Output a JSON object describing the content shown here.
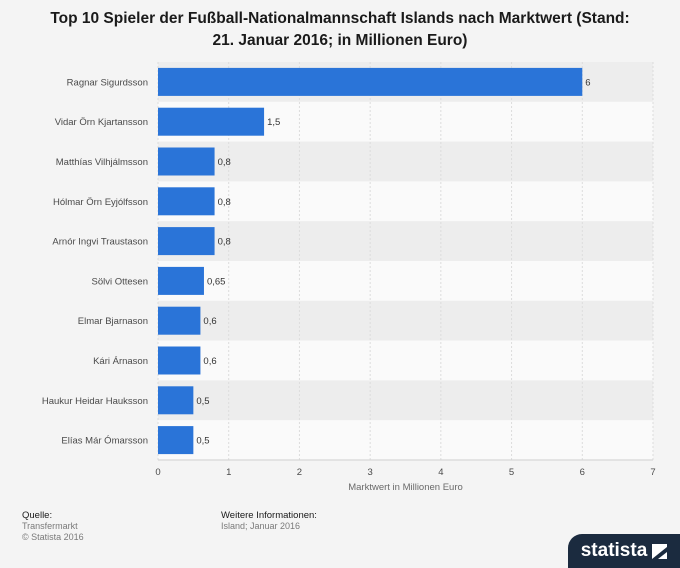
{
  "title_line1": "Top 10 Spieler der Fußball-Nationalmannschaft Islands nach Marktwert (Stand:",
  "title_line2": "21. Januar 2016; in Millionen Euro)",
  "chart_data": {
    "type": "bar",
    "orientation": "horizontal",
    "categories": [
      "Ragnar Sigurdsson",
      "Vidar Örn Kjartansson",
      "Matthías Vilhjálmsson",
      "Hólmar Örn Eyjólfsson",
      "Arnór Ingvi Traustason",
      "Sölvi Ottesen",
      "Elmar Bjarnason",
      "Kári Árnason",
      "Haukur Heidar Hauksson",
      "Elías Már Ómarsson"
    ],
    "values": [
      6,
      1.5,
      0.8,
      0.8,
      0.8,
      0.65,
      0.6,
      0.6,
      0.5,
      0.5
    ],
    "value_labels": [
      "6",
      "1,5",
      "0,8",
      "0,8",
      "0,8",
      "0,65",
      "0,6",
      "0,6",
      "0,5",
      "0,5"
    ],
    "xlabel": "Marktwert in Millionen Euro",
    "xlim": [
      0,
      7
    ],
    "xticks": [
      "0",
      "1",
      "2",
      "3",
      "4",
      "5",
      "6",
      "7"
    ],
    "bar_color": "#2a74d8",
    "grid": true
  },
  "footer": {
    "source_head": "Quelle:",
    "source_line1": "Transfermarkt",
    "source_line2": "© Statista 2016",
    "info_head": "Weitere Informationen:",
    "info_line1": "Island; Januar 2016"
  },
  "brand": {
    "name": "statista",
    "icon": "statista-logo-icon",
    "color": "#1b2b3f"
  }
}
